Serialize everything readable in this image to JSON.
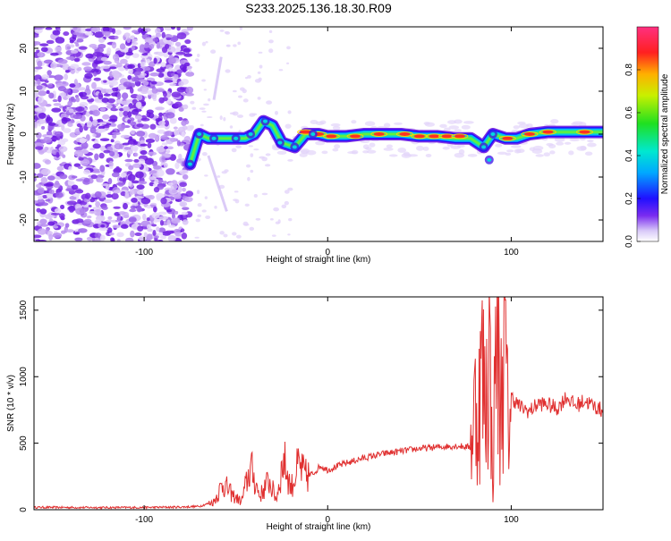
{
  "title": "S233.2025.136.18.30.R09",
  "colors": {
    "snr_line": "#e03030",
    "axis": "#000000",
    "speckle_dark": "#6a1be0",
    "speckle_light": "#d9c4f7"
  },
  "chart_data": [
    {
      "type": "heatmap",
      "title": "S233.2025.136.18.30.R09",
      "xlabel": "Height of straight line (km)",
      "ylabel": "Frequency (Hz)",
      "xlim": [
        -160,
        150
      ],
      "ylim": [
        -25,
        25
      ],
      "x_ticks": [
        -100,
        0,
        100
      ],
      "y_ticks": [
        20,
        10,
        0,
        -10,
        -20
      ],
      "x_tick_labels": [
        "-100",
        "0",
        "100"
      ],
      "y_tick_labels": [
        "20",
        "10",
        "0",
        "-10",
        "-20"
      ],
      "colorbar": {
        "label": "Normalized spectral amplitude",
        "range": [
          0.0,
          1.0
        ],
        "ticks": [
          0.0,
          0.2,
          0.4,
          0.6,
          0.8
        ],
        "tick_labels": [
          "0.0",
          "0.2",
          "0.4",
          "0.6",
          "0.8"
        ],
        "colormap": "rainbow (white → violet → blue → cyan → green → yellow → red → magenta)"
      },
      "ridge": [
        {
          "x": -75,
          "y": -7
        },
        {
          "x": -70,
          "y": 0
        },
        {
          "x": -65,
          "y": -1
        },
        {
          "x": -60,
          "y": -1
        },
        {
          "x": -55,
          "y": -1
        },
        {
          "x": -50,
          "y": -1
        },
        {
          "x": -45,
          "y": -1
        },
        {
          "x": -40,
          "y": 0
        },
        {
          "x": -35,
          "y": 3
        },
        {
          "x": -30,
          "y": 2
        },
        {
          "x": -25,
          "y": -2
        },
        {
          "x": -18,
          "y": -3
        },
        {
          "x": -12,
          "y": 0
        },
        {
          "x": -5,
          "y": 0
        },
        {
          "x": 0,
          "y": -0.5
        },
        {
          "x": 10,
          "y": -0.5
        },
        {
          "x": 20,
          "y": 0
        },
        {
          "x": 30,
          "y": 0
        },
        {
          "x": 40,
          "y": 0
        },
        {
          "x": 50,
          "y": -0.5
        },
        {
          "x": 60,
          "y": -0.5
        },
        {
          "x": 70,
          "y": -1
        },
        {
          "x": 78,
          "y": -1
        },
        {
          "x": 85,
          "y": -3
        },
        {
          "x": 90,
          "y": 0
        },
        {
          "x": 97,
          "y": -1
        },
        {
          "x": 103,
          "y": -1
        },
        {
          "x": 110,
          "y": 0
        },
        {
          "x": 120,
          "y": 0.5
        },
        {
          "x": 130,
          "y": 0.5
        },
        {
          "x": 140,
          "y": 0.5
        },
        {
          "x": 150,
          "y": 0.5
        }
      ]
    },
    {
      "type": "line",
      "xlabel": "Height of straight line (km)",
      "ylabel": "SNR (10 * v/v)",
      "xlim": [
        -160,
        150
      ],
      "ylim": [
        0,
        1600
      ],
      "x_ticks": [
        -100,
        0,
        100
      ],
      "y_ticks": [
        0,
        500,
        1000,
        1500
      ],
      "x_tick_labels": [
        "-100",
        "0",
        "100"
      ],
      "y_tick_labels": [
        "0",
        "500",
        "1000",
        "1500"
      ],
      "series": [
        {
          "color": "#e03030",
          "x": [
            -160,
            -140,
            -120,
            -100,
            -80,
            -70,
            -62,
            -57,
            -52,
            -47,
            -42,
            -37,
            -32,
            -28,
            -24,
            -20,
            -16,
            -12,
            -8,
            -4,
            0,
            10,
            20,
            30,
            40,
            50,
            60,
            70,
            78,
            80,
            82,
            84,
            86,
            88,
            90,
            92,
            94,
            96,
            98,
            100,
            105,
            110,
            115,
            120,
            125,
            130,
            135,
            140,
            145,
            150
          ],
          "y": [
            18,
            17,
            16,
            17,
            20,
            25,
            60,
            200,
            110,
            60,
            320,
            100,
            220,
            80,
            380,
            160,
            330,
            250,
            270,
            330,
            300,
            350,
            390,
            420,
            440,
            460,
            470,
            480,
            470,
            780,
            700,
            1100,
            750,
            1300,
            150,
            1580,
            600,
            1450,
            700,
            850,
            770,
            740,
            800,
            790,
            760,
            850,
            780,
            820,
            780,
            740
          ]
        }
      ]
    }
  ]
}
